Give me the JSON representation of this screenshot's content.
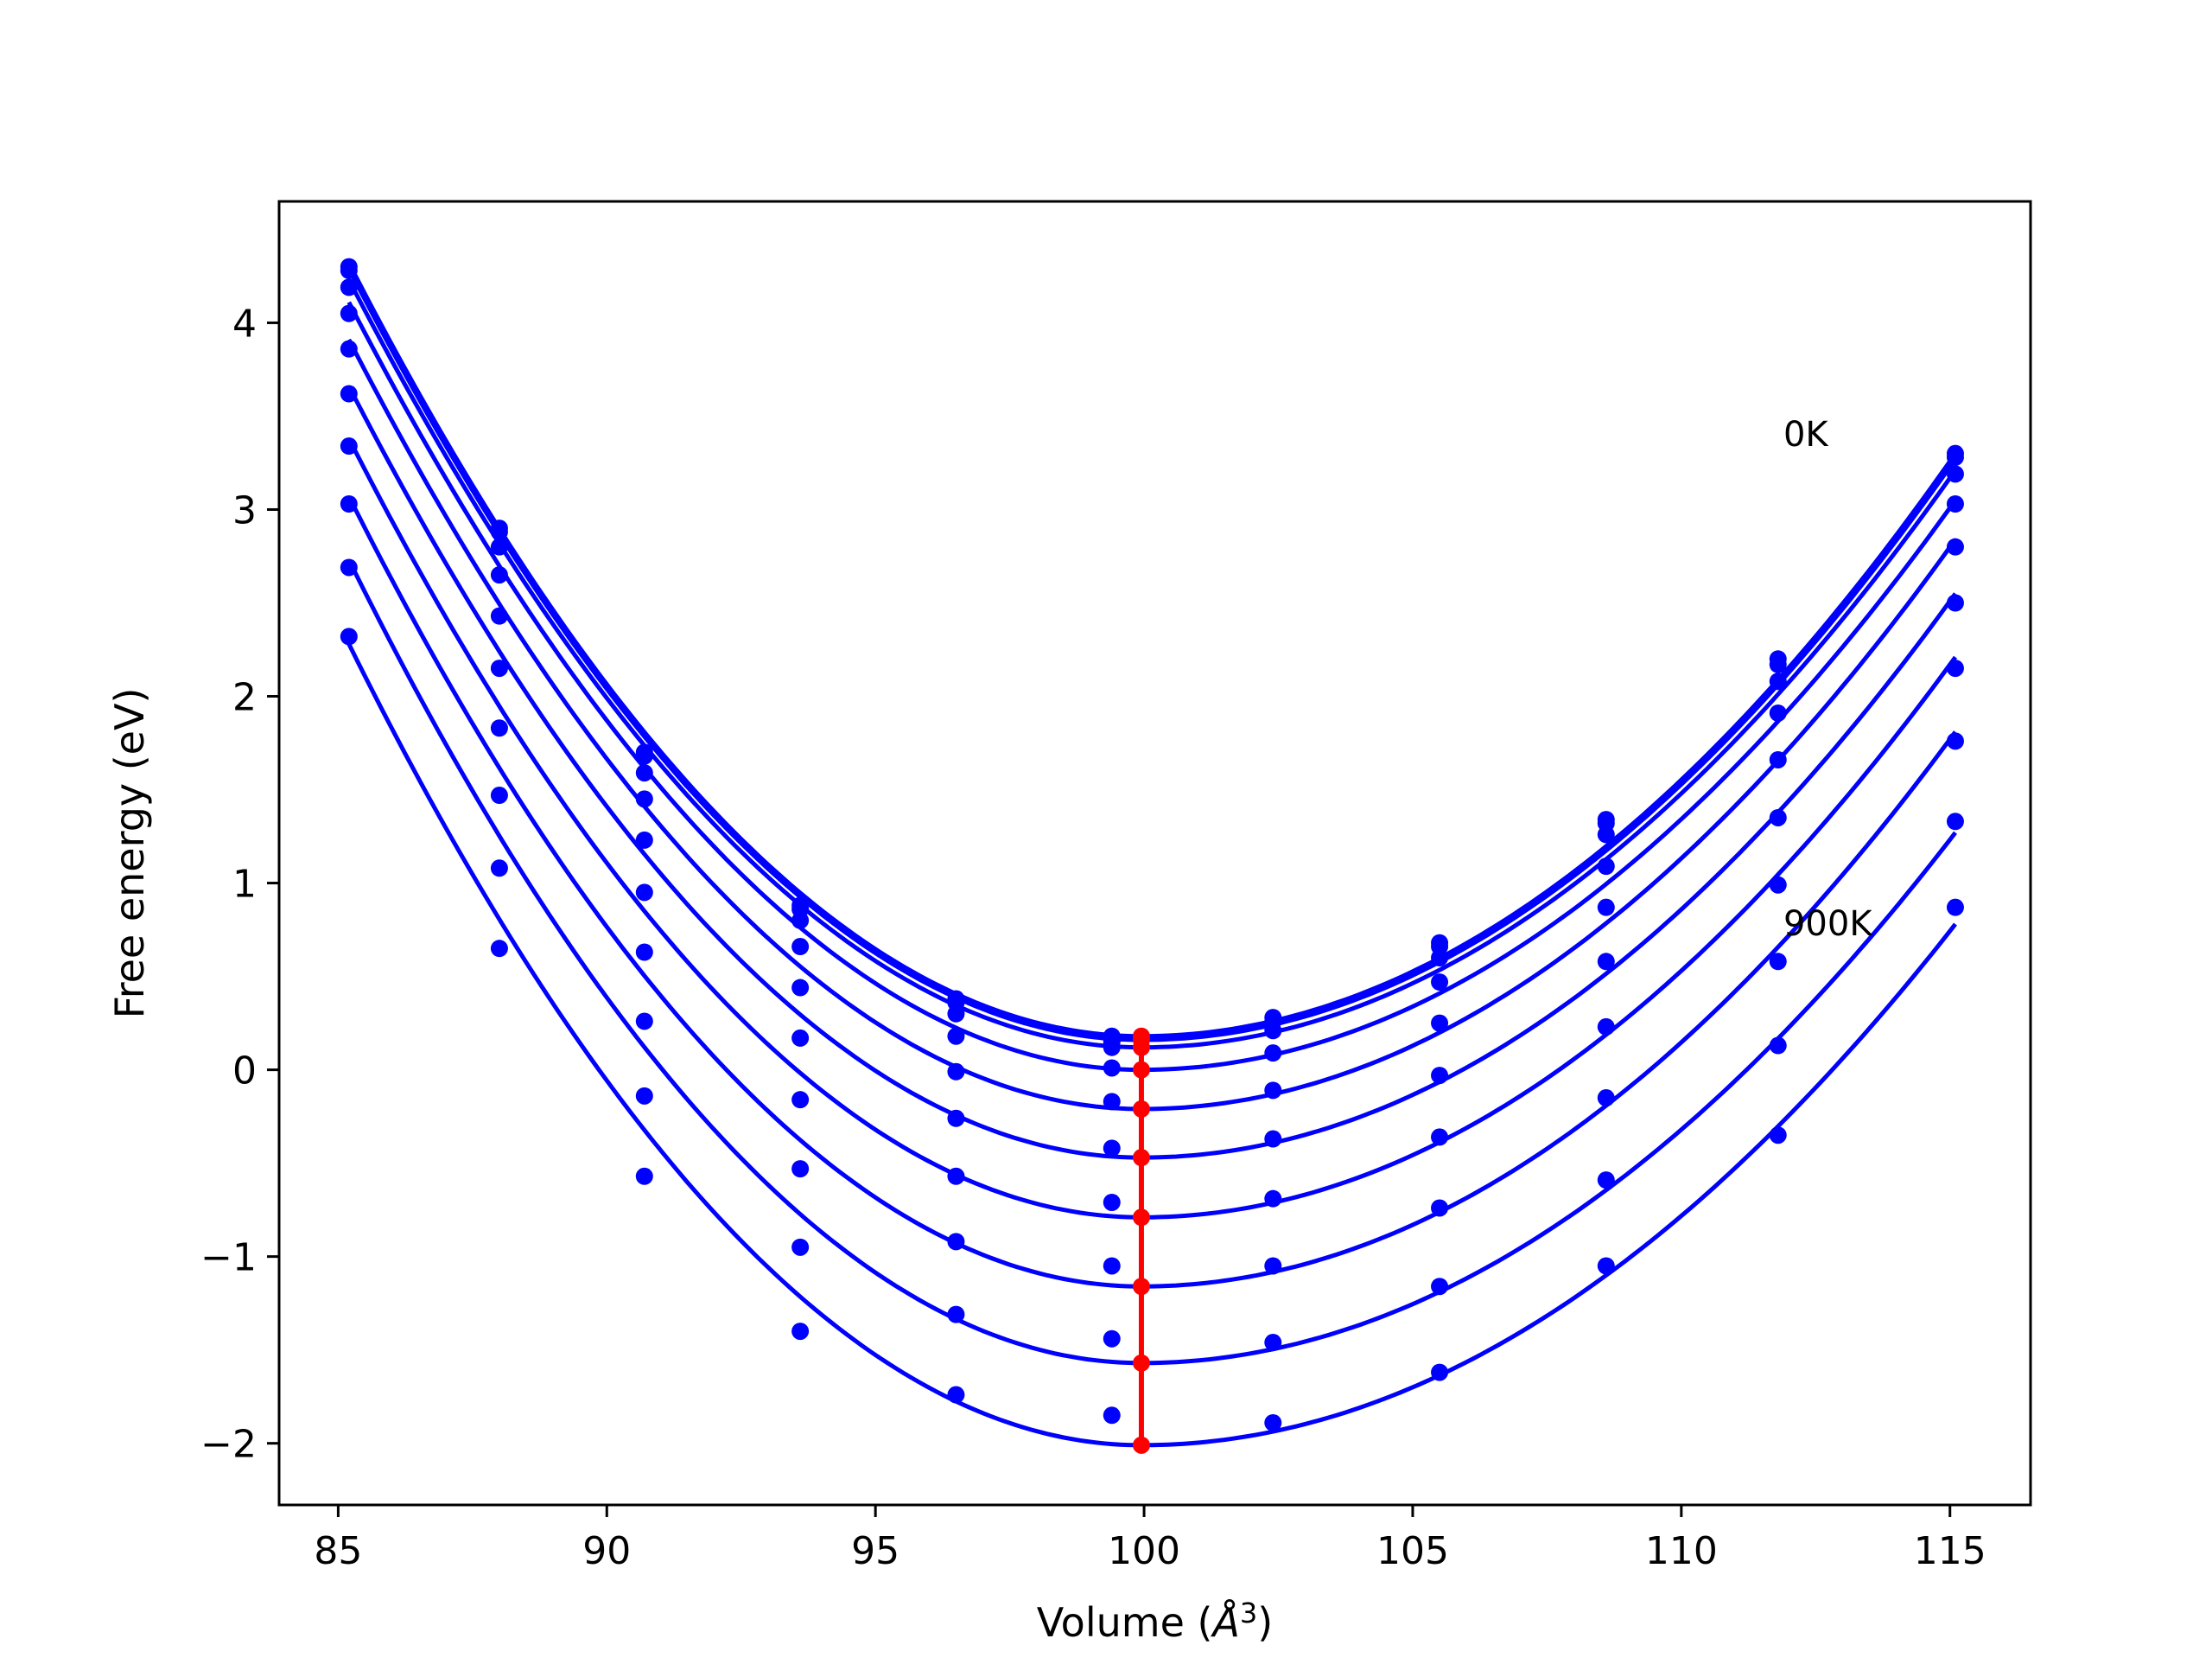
{
  "chart_data": {
    "type": "scatter",
    "title": "",
    "xlabel_prefix": "Volume (",
    "xlabel_unit": "Å",
    "xlabel_sup": "3",
    "xlabel_suffix": ")",
    "ylabel": "Free energy (eV)",
    "xlim": [
      83.9,
      116.5
    ],
    "ylim": [
      -2.33,
      4.65
    ],
    "xticks": [
      85,
      90,
      95,
      100,
      105,
      110,
      115
    ],
    "yticks": [
      -2,
      -1,
      0,
      1,
      2,
      3,
      4
    ],
    "xtick_labels": [
      "85",
      "90",
      "95",
      "100",
      "105",
      "110",
      "115"
    ],
    "ytick_labels": [
      "−2",
      "−1",
      "0",
      "1",
      "2",
      "3",
      "4"
    ],
    "grid": false,
    "legend": "none",
    "annotations": [
      {
        "text": "0K",
        "x": 111.9,
        "y": 3.34
      },
      {
        "text": "900K",
        "x": 111.9,
        "y": 0.72
      }
    ],
    "colors": {
      "series": "#0000ff",
      "minima": "#ff0000",
      "axes": "#000000"
    },
    "x": [
      85.2,
      88.0,
      90.7,
      93.6,
      96.5,
      99.4,
      102.4,
      105.5,
      108.6,
      111.8,
      115.1
    ],
    "series": [
      {
        "values": [
          4.3,
          2.9,
          1.7,
          0.88,
          0.38,
          0.18,
          0.28,
          0.68,
          1.34,
          2.2,
          3.3
        ],
        "fit_min_x": 99.95,
        "fit_min_y": 0.18,
        "fit_end": [
          4.32,
          3.3
        ]
      },
      {
        "values": [
          4.28,
          2.88,
          1.68,
          0.86,
          0.36,
          0.15,
          0.26,
          0.66,
          1.32,
          2.17,
          3.28
        ],
        "fit_min_x": 99.95,
        "fit_min_y": 0.16,
        "fit_end": [
          4.29,
          3.27
        ]
      },
      {
        "values": [
          4.19,
          2.8,
          1.59,
          0.8,
          0.3,
          0.12,
          0.21,
          0.6,
          1.26,
          2.08,
          3.19
        ],
        "fit_min_x": 99.95,
        "fit_min_y": 0.12,
        "fit_end": [
          4.23,
          3.21
        ]
      },
      {
        "values": [
          4.05,
          2.65,
          1.45,
          0.66,
          0.18,
          0.01,
          0.09,
          0.47,
          1.09,
          1.91,
          3.03
        ],
        "fit_min_x": 99.95,
        "fit_min_y": 0.0,
        "fit_end": [
          4.11,
          3.05
        ]
      },
      {
        "values": [
          3.86,
          2.43,
          1.23,
          0.44,
          -0.01,
          -0.17,
          -0.11,
          0.25,
          0.87,
          1.66,
          2.8
        ],
        "fit_min_x": 99.95,
        "fit_min_y": -0.21,
        "fit_end": [
          3.91,
          2.84
        ]
      },
      {
        "values": [
          3.62,
          2.15,
          0.95,
          0.17,
          -0.26,
          -0.42,
          -0.37,
          -0.03,
          0.58,
          1.35,
          2.5
        ],
        "fit_min_x": 99.95,
        "fit_min_y": -0.47,
        "fit_end": [
          3.66,
          2.55
        ]
      },
      {
        "values": [
          3.34,
          1.83,
          0.63,
          -0.16,
          -0.57,
          -0.71,
          -0.69,
          -0.36,
          0.23,
          0.99,
          2.15
        ],
        "fit_min_x": 99.95,
        "fit_min_y": -0.79,
        "fit_end": [
          3.38,
          2.21
        ]
      },
      {
        "values": [
          3.03,
          1.47,
          0.26,
          -0.53,
          -0.92,
          -1.05,
          -1.05,
          -0.74,
          -0.15,
          0.58,
          1.76
        ],
        "fit_min_x": 99.95,
        "fit_min_y": -1.16,
        "fit_end": [
          3.07,
          1.81
        ]
      },
      {
        "values": [
          2.69,
          1.08,
          -0.14,
          -0.95,
          -1.31,
          -1.44,
          -1.46,
          -1.16,
          -0.59,
          0.13,
          1.33
        ],
        "fit_min_x": 99.95,
        "fit_min_y": -1.57,
        "fit_end": [
          2.73,
          1.27
        ]
      },
      {
        "values": [
          2.32,
          0.65,
          -0.57,
          -1.4,
          -1.74,
          -1.85,
          -1.89,
          -1.62,
          -1.05,
          -0.35,
          0.87
        ],
        "fit_min_x": 99.95,
        "fit_min_y": -2.01,
        "fit_end": [
          2.28,
          0.78
        ]
      }
    ],
    "minima_line": {
      "x": 99.95,
      "y": [
        0.18,
        0.16,
        0.12,
        0.0,
        -0.21,
        -0.47,
        -0.79,
        -1.16,
        -1.57,
        -2.01
      ]
    }
  }
}
